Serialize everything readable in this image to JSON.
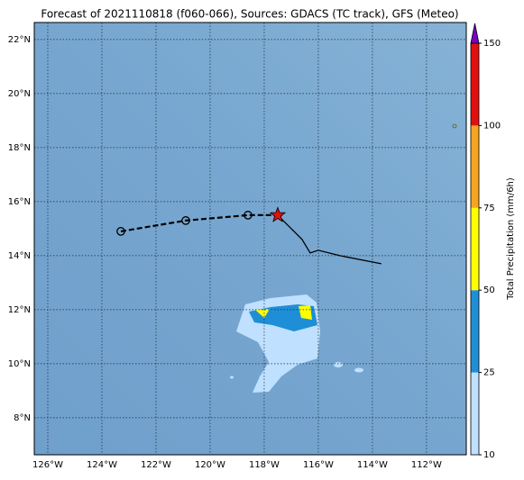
{
  "chart_data": {
    "type": "map",
    "title": "Forecast of 2021110818 (f060-066), Sources: GDACS (TC track), GFS (Meteo)",
    "xlim": [
      -126.5,
      -110.53
    ],
    "ylim": [
      6.63,
      22.63
    ],
    "xticks": [
      {
        "value": -126,
        "label": "126°W"
      },
      {
        "value": -124,
        "label": "124°W"
      },
      {
        "value": -122,
        "label": "122°W"
      },
      {
        "value": -120,
        "label": "120°W"
      },
      {
        "value": -118,
        "label": "118°W"
      },
      {
        "value": -116,
        "label": "116°W"
      },
      {
        "value": -114,
        "label": "114°W"
      },
      {
        "value": -112,
        "label": "112°W"
      }
    ],
    "yticks": [
      {
        "value": 8,
        "label": "8°N"
      },
      {
        "value": 10,
        "label": "10°N"
      },
      {
        "value": 12,
        "label": "12°N"
      },
      {
        "value": 14,
        "label": "14°N"
      },
      {
        "value": 16,
        "label": "16°N"
      },
      {
        "value": 18,
        "label": "18°N"
      },
      {
        "value": 20,
        "label": "20°N"
      },
      {
        "value": 22,
        "label": "22°N"
      }
    ],
    "grid": true,
    "forecast_track": {
      "x": [
        -123.3,
        -120.9,
        -118.6,
        -117.5
      ],
      "y": [
        14.9,
        15.3,
        15.5,
        15.5
      ],
      "color": "#000000"
    },
    "observed_track": {
      "x": [
        -117.5,
        -117.1,
        -116.6,
        -116.3,
        -116.0,
        -115.2,
        -113.67
      ],
      "y": [
        15.5,
        15.1,
        14.6,
        14.1,
        14.2,
        14.0,
        13.7
      ],
      "color": "#000000"
    },
    "current_position": {
      "x": -117.5,
      "y": 15.5,
      "color": "#e01010"
    },
    "colorbar": {
      "label": "Total Precipitation (mm/6h)",
      "levels": [
        10,
        25,
        50,
        75,
        100,
        150
      ],
      "colors": [
        "#bfe0ff",
        "#1e8fd6",
        "#ffff00",
        "#f7a520",
        "#e01010"
      ],
      "extend_color": "#7a00c8"
    }
  }
}
